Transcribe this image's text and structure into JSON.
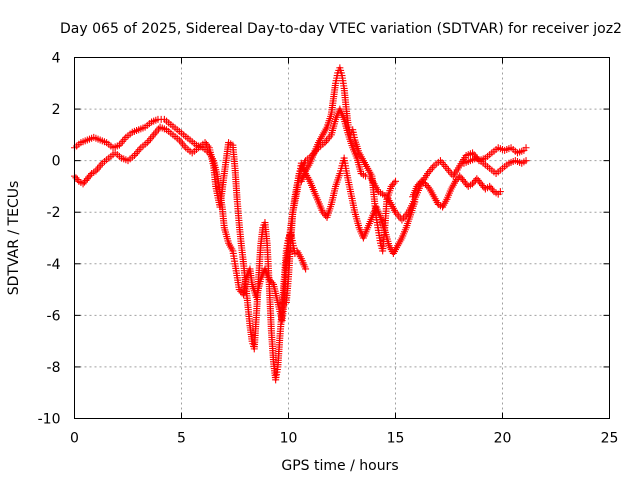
{
  "chart_data": {
    "type": "scatter",
    "title": "Day 065 of 2025, Sidereal Day-to-day VTEC variation (SDTVAR) for receiver joz2",
    "xlabel": "GPS time / hours",
    "ylabel": "SDTVAR / TECUs",
    "xlim": [
      0,
      25
    ],
    "ylim": [
      -10,
      4
    ],
    "xticks": [
      "0",
      "5",
      "10",
      "15",
      "20",
      "25"
    ],
    "yticks": [
      "4",
      "2",
      "0",
      "-2",
      "-4",
      "-6",
      "-8",
      "-10"
    ],
    "grid": true,
    "marker": "plus",
    "color": "#ff0000",
    "series": [
      {
        "points": [
          [
            0.0,
            0.5
          ],
          [
            0.3,
            0.7
          ],
          [
            0.6,
            0.8
          ],
          [
            0.9,
            0.9
          ],
          [
            1.2,
            0.8
          ],
          [
            1.5,
            0.7
          ],
          [
            1.8,
            0.5
          ],
          [
            2.1,
            0.6
          ],
          [
            2.4,
            0.9
          ],
          [
            2.7,
            1.1
          ],
          [
            3.0,
            1.2
          ],
          [
            3.3,
            1.3
          ],
          [
            3.6,
            1.5
          ],
          [
            3.9,
            1.6
          ],
          [
            4.2,
            1.6
          ],
          [
            4.5,
            1.4
          ],
          [
            4.8,
            1.2
          ],
          [
            5.1,
            1.0
          ],
          [
            5.4,
            0.8
          ],
          [
            5.7,
            0.6
          ],
          [
            6.0,
            0.5
          ],
          [
            6.3,
            0.3
          ],
          [
            6.5,
            0.0
          ],
          [
            6.7,
            -0.7
          ],
          [
            6.9,
            -1.8
          ],
          [
            7.0,
            -2.6
          ],
          [
            7.2,
            -3.2
          ],
          [
            7.4,
            -3.5
          ],
          [
            7.5,
            -4.0
          ],
          [
            7.7,
            -5.0
          ],
          [
            7.9,
            -5.2
          ],
          [
            8.0,
            -4.6
          ],
          [
            8.2,
            -4.2
          ],
          [
            8.3,
            -4.8
          ],
          [
            8.5,
            -5.3
          ],
          [
            8.7,
            -4.6
          ],
          [
            8.9,
            -4.2
          ],
          [
            9.1,
            -4.6
          ],
          [
            9.3,
            -4.8
          ],
          [
            9.5,
            -5.5
          ],
          [
            9.7,
            -6.2
          ],
          [
            9.8,
            -5.5
          ],
          [
            9.9,
            -4.0
          ],
          [
            10.1,
            -2.6
          ],
          [
            10.3,
            -1.4
          ],
          [
            10.5,
            -0.5
          ],
          [
            10.8,
            0.0
          ],
          [
            11.1,
            0.2
          ],
          [
            11.4,
            0.5
          ],
          [
            11.7,
            0.7
          ],
          [
            12.0,
            1.0
          ],
          [
            12.2,
            1.6
          ],
          [
            12.4,
            2.0
          ],
          [
            12.6,
            1.6
          ],
          [
            12.8,
            1.0
          ],
          [
            13.0,
            0.5
          ],
          [
            13.2,
            0.1
          ],
          [
            13.4,
            -0.5
          ],
          [
            13.6,
            -0.6
          ],
          [
            13.8,
            -0.6
          ],
          [
            14.0,
            -0.9
          ],
          [
            14.2,
            -1.2
          ],
          [
            14.4,
            -1.3
          ],
          [
            14.6,
            -1.4
          ],
          [
            14.8,
            -1.7
          ],
          [
            15.0,
            -2.0
          ],
          [
            15.3,
            -2.3
          ],
          [
            15.6,
            -2.0
          ],
          [
            15.9,
            -1.5
          ],
          [
            16.2,
            -0.9
          ],
          [
            16.5,
            -0.5
          ],
          [
            16.8,
            -0.2
          ],
          [
            17.1,
            0.0
          ],
          [
            17.4,
            -0.3
          ],
          [
            17.7,
            -0.6
          ],
          [
            18.0,
            -0.2
          ],
          [
            18.3,
            0.2
          ],
          [
            18.6,
            0.3
          ],
          [
            18.9,
            0.0
          ],
          [
            19.2,
            0.1
          ],
          [
            19.5,
            0.3
          ],
          [
            19.8,
            0.5
          ],
          [
            20.1,
            0.4
          ],
          [
            20.4,
            0.5
          ],
          [
            20.7,
            0.3
          ],
          [
            21.0,
            0.4
          ],
          [
            21.1,
            0.5
          ]
        ]
      },
      {
        "points": [
          [
            0.0,
            -0.6
          ],
          [
            0.2,
            -0.8
          ],
          [
            0.4,
            -0.9
          ],
          [
            0.6,
            -0.7
          ],
          [
            0.8,
            -0.5
          ],
          [
            1.0,
            -0.4
          ],
          [
            1.3,
            -0.1
          ],
          [
            1.6,
            0.1
          ],
          [
            1.9,
            0.3
          ],
          [
            2.2,
            0.1
          ],
          [
            2.5,
            0.0
          ],
          [
            2.8,
            0.2
          ],
          [
            3.1,
            0.5
          ],
          [
            3.4,
            0.7
          ],
          [
            3.7,
            1.0
          ],
          [
            4.0,
            1.3
          ],
          [
            4.3,
            1.2
          ],
          [
            4.6,
            1.0
          ],
          [
            4.9,
            0.8
          ],
          [
            5.2,
            0.5
          ],
          [
            5.5,
            0.3
          ],
          [
            5.8,
            0.5
          ],
          [
            6.1,
            0.7
          ],
          [
            6.3,
            0.5
          ],
          [
            6.5,
            -0.2
          ],
          [
            6.6,
            -1.0
          ],
          [
            6.8,
            -1.8
          ],
          [
            7.0,
            -0.5
          ],
          [
            7.2,
            0.7
          ],
          [
            7.4,
            0.6
          ],
          [
            7.5,
            -0.3
          ],
          [
            7.6,
            -1.5
          ],
          [
            7.7,
            -2.5
          ],
          [
            7.8,
            -3.3
          ],
          [
            7.9,
            -4.0
          ],
          [
            8.0,
            -4.8
          ],
          [
            8.1,
            -5.6
          ],
          [
            8.2,
            -6.4
          ],
          [
            8.3,
            -7.0
          ],
          [
            8.4,
            -7.3
          ],
          [
            8.5,
            -6.0
          ],
          [
            8.6,
            -4.6
          ],
          [
            8.7,
            -3.3
          ],
          [
            8.8,
            -2.6
          ],
          [
            8.9,
            -2.4
          ],
          [
            9.0,
            -3.2
          ],
          [
            9.1,
            -4.8
          ],
          [
            9.2,
            -6.6
          ],
          [
            9.3,
            -7.8
          ],
          [
            9.4,
            -8.5
          ],
          [
            9.5,
            -8.0
          ],
          [
            9.6,
            -6.8
          ],
          [
            9.7,
            -5.8
          ],
          [
            9.8,
            -4.6
          ],
          [
            9.9,
            -3.5
          ],
          [
            10.0,
            -3.0
          ],
          [
            10.1,
            -2.8
          ],
          [
            10.2,
            -3.2
          ],
          [
            10.3,
            -3.6
          ],
          [
            10.4,
            -3.5
          ],
          [
            10.6,
            -3.8
          ],
          [
            10.8,
            -4.2
          ]
        ]
      },
      {
        "points": [
          [
            9.9,
            -5.5
          ],
          [
            10.0,
            -4.5
          ],
          [
            10.1,
            -3.2
          ],
          [
            10.2,
            -2.0
          ],
          [
            10.4,
            -1.2
          ],
          [
            10.5,
            -0.6
          ],
          [
            10.6,
            -0.1
          ],
          [
            10.8,
            -0.5
          ],
          [
            11.0,
            -0.8
          ],
          [
            11.2,
            -1.2
          ],
          [
            11.4,
            -1.6
          ],
          [
            11.6,
            -2.0
          ],
          [
            11.8,
            -2.2
          ],
          [
            12.0,
            -1.7
          ],
          [
            12.2,
            -1.0
          ],
          [
            12.4,
            -0.5
          ],
          [
            12.5,
            -0.2
          ],
          [
            12.6,
            0.1
          ],
          [
            12.7,
            -0.4
          ],
          [
            12.9,
            -1.2
          ],
          [
            13.1,
            -2.0
          ],
          [
            13.3,
            -2.6
          ],
          [
            13.5,
            -3.0
          ],
          [
            13.7,
            -2.6
          ],
          [
            13.9,
            -2.2
          ],
          [
            14.1,
            -1.8
          ],
          [
            14.3,
            -2.2
          ],
          [
            14.5,
            -2.7
          ],
          [
            14.7,
            -3.3
          ],
          [
            14.9,
            -3.6
          ],
          [
            15.1,
            -3.3
          ],
          [
            15.3,
            -3.0
          ],
          [
            15.5,
            -2.6
          ],
          [
            15.7,
            -2.1
          ],
          [
            15.9,
            -1.6
          ]
        ]
      },
      {
        "points": [
          [
            10.6,
            -0.8
          ],
          [
            10.8,
            -0.4
          ],
          [
            11.0,
            -0.1
          ],
          [
            11.2,
            0.3
          ],
          [
            11.4,
            0.7
          ],
          [
            11.6,
            1.0
          ],
          [
            11.8,
            1.3
          ],
          [
            12.0,
            1.8
          ],
          [
            12.1,
            2.4
          ],
          [
            12.2,
            3.0
          ],
          [
            12.3,
            3.4
          ],
          [
            12.4,
            3.6
          ],
          [
            12.5,
            3.3
          ],
          [
            12.6,
            2.8
          ],
          [
            12.7,
            2.0
          ],
          [
            12.8,
            1.3
          ],
          [
            12.9,
            1.0
          ],
          [
            13.0,
            1.2
          ],
          [
            13.1,
            0.8
          ],
          [
            13.3,
            0.3
          ],
          [
            13.5,
            0.0
          ],
          [
            13.7,
            -0.3
          ],
          [
            13.9,
            -0.6
          ],
          [
            14.0,
            -1.4
          ],
          [
            14.1,
            -2.2
          ],
          [
            14.2,
            -2.7
          ],
          [
            14.3,
            -3.2
          ],
          [
            14.4,
            -3.5
          ],
          [
            14.5,
            -2.6
          ],
          [
            14.6,
            -1.5
          ],
          [
            14.8,
            -1.0
          ],
          [
            15.0,
            -0.8
          ]
        ]
      },
      {
        "points": [
          [
            15.8,
            -1.4
          ],
          [
            16.0,
            -1.0
          ],
          [
            16.2,
            -0.8
          ],
          [
            16.4,
            -0.9
          ],
          [
            16.6,
            -1.1
          ],
          [
            16.8,
            -1.4
          ],
          [
            17.0,
            -1.7
          ],
          [
            17.2,
            -1.8
          ],
          [
            17.4,
            -1.5
          ],
          [
            17.6,
            -1.1
          ],
          [
            17.8,
            -0.8
          ],
          [
            18.0,
            -0.6
          ],
          [
            18.2,
            -0.8
          ],
          [
            18.4,
            -1.0
          ],
          [
            18.6,
            -0.9
          ],
          [
            18.8,
            -0.7
          ],
          [
            19.0,
            -0.9
          ],
          [
            19.2,
            -1.1
          ],
          [
            19.4,
            -1.0
          ],
          [
            19.6,
            -1.2
          ],
          [
            19.8,
            -1.3
          ],
          [
            19.9,
            -1.2
          ]
        ]
      },
      {
        "points": [
          [
            18.2,
            -0.1
          ],
          [
            18.5,
            0.0
          ],
          [
            18.8,
            0.1
          ],
          [
            19.1,
            -0.1
          ],
          [
            19.4,
            -0.3
          ],
          [
            19.7,
            -0.5
          ],
          [
            20.0,
            -0.3
          ],
          [
            20.3,
            -0.1
          ],
          [
            20.6,
            0.0
          ],
          [
            20.9,
            -0.1
          ],
          [
            21.1,
            0.0
          ]
        ]
      }
    ]
  }
}
